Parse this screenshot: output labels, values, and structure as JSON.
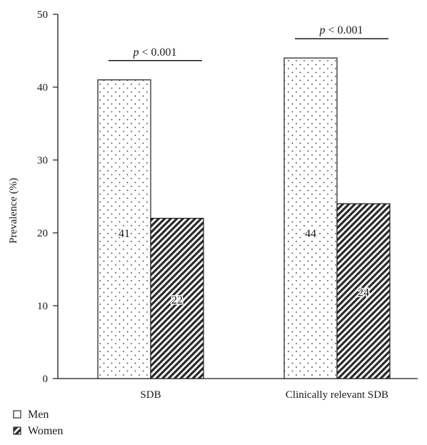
{
  "chart_data": {
    "type": "bar",
    "categories": [
      "SDB",
      "Clinically relevant SDB"
    ],
    "series": [
      {
        "name": "Men",
        "values": [
          41,
          44
        ],
        "pattern": "dots"
      },
      {
        "name": "Women",
        "values": [
          22,
          24
        ],
        "pattern": "hatch"
      }
    ],
    "data_labels": [
      [
        "41",
        "44"
      ],
      [
        "22",
        "24"
      ]
    ],
    "ylabel": "Prevalence (%)",
    "xlabel": "",
    "ylim": [
      0,
      50
    ],
    "yticks": [
      0,
      10,
      20,
      30,
      40,
      50
    ],
    "significance": [
      {
        "category": "SDB",
        "text": "p < 0.001"
      },
      {
        "category": "Clinically relevant SDB",
        "text": "p < 0.001"
      }
    ],
    "legend_position": "bottom-left",
    "grid": false
  }
}
